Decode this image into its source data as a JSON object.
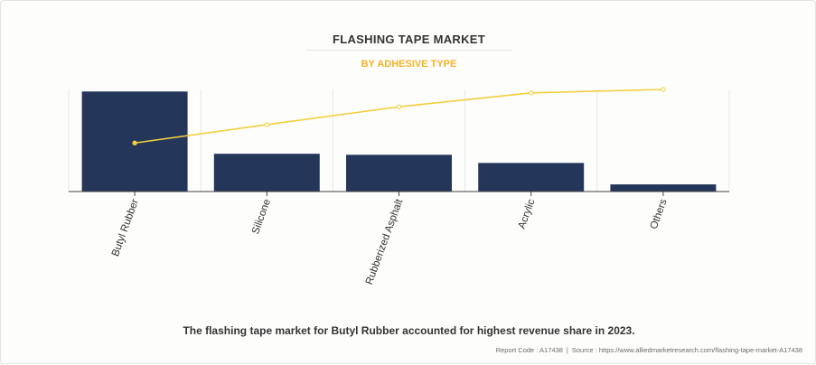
{
  "header": {
    "title": "FLASHING TAPE MARKET",
    "subtitle": "BY ADHESIVE TYPE"
  },
  "caption": "The flashing tape market for Butyl Rubber accounted for highest revenue share in 2023.",
  "footer": {
    "report_code": "Report Code : A17438",
    "separator": "|",
    "source": "Source : https://www.alliedmarketresearch.com/flashing-tape-market-A17438"
  },
  "colors": {
    "bar": "#24375a",
    "line": "#f2cf3c",
    "title": "#333333",
    "subtitle": "#f5b324"
  },
  "chart_data": {
    "type": "bar",
    "categories": [
      "Butyl Rubber",
      "Silicone",
      "Rubberized Asphalt",
      "Acrylic",
      "Others"
    ],
    "values": [
      49,
      18.5,
      18,
      14,
      3.5
    ],
    "ylim": [
      0,
      50
    ],
    "line": {
      "type": "line",
      "values": [
        49,
        67.5,
        85.5,
        99.5,
        103
      ],
      "ylim": [
        0,
        103
      ]
    },
    "grid": true,
    "legend": "none"
  }
}
